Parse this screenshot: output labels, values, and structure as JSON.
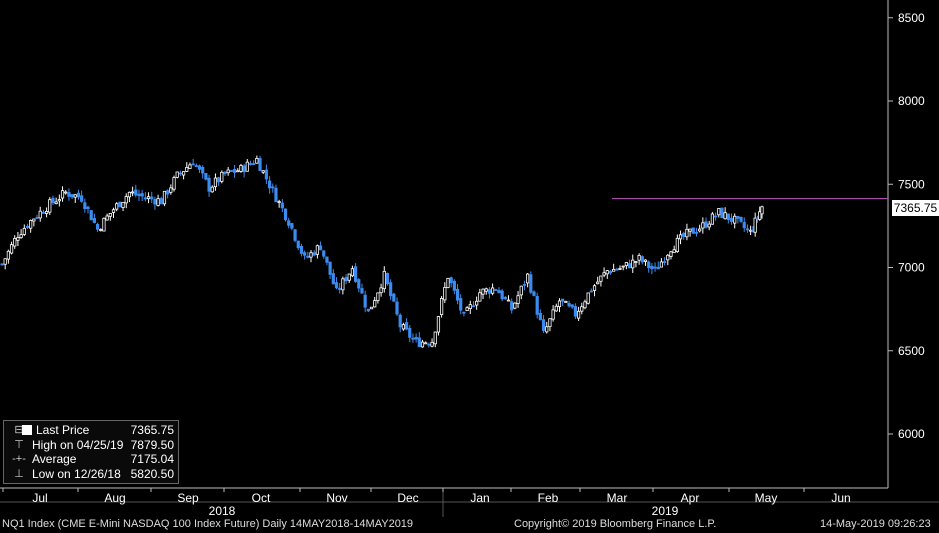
{
  "chart_data": {
    "type": "candlestick",
    "series_name": "NQ1 Index (CME E-Mini NASDAQ 100 Index Future)",
    "period": "Daily 14MAY2018-14MAY2019",
    "y_ticks": [
      6000,
      6500,
      7000,
      7500,
      8000,
      8500
    ],
    "ylim": [
      5700,
      8550
    ],
    "x_month_labels": [
      "Jul",
      "Aug",
      "Sep",
      "Oct",
      "Nov",
      "Dec",
      "Jan",
      "Feb",
      "Mar",
      "Apr",
      "May",
      "Jun"
    ],
    "year_labels": [
      "2018",
      "2019"
    ],
    "close_series": [
      {
        "date": "2018-06-14",
        "close": 7020
      },
      {
        "date": "2018-06-21",
        "close": 7200
      },
      {
        "date": "2018-06-28",
        "close": 7300
      },
      {
        "date": "2018-07-05",
        "close": 7380
      },
      {
        "date": "2018-07-12",
        "close": 7450
      },
      {
        "date": "2018-07-19",
        "close": 7420
      },
      {
        "date": "2018-07-26",
        "close": 7230
      },
      {
        "date": "2018-08-02",
        "close": 7350
      },
      {
        "date": "2018-08-09",
        "close": 7450
      },
      {
        "date": "2018-08-16",
        "close": 7420
      },
      {
        "date": "2018-08-23",
        "close": 7400
      },
      {
        "date": "2018-08-30",
        "close": 7550
      },
      {
        "date": "2018-09-06",
        "close": 7640
      },
      {
        "date": "2018-09-13",
        "close": 7480
      },
      {
        "date": "2018-09-20",
        "close": 7560
      },
      {
        "date": "2018-09-27",
        "close": 7590
      },
      {
        "date": "2018-10-04",
        "close": 7650
      },
      {
        "date": "2018-10-11",
        "close": 7460
      },
      {
        "date": "2018-10-18",
        "close": 7280
      },
      {
        "date": "2018-10-25",
        "close": 7050
      },
      {
        "date": "2018-11-01",
        "close": 7130
      },
      {
        "date": "2018-11-08",
        "close": 6850
      },
      {
        "date": "2018-11-15",
        "close": 7000
      },
      {
        "date": "2018-11-22",
        "close": 6730
      },
      {
        "date": "2018-11-29",
        "close": 6950
      },
      {
        "date": "2018-12-06",
        "close": 6650
      },
      {
        "date": "2018-12-13",
        "close": 6550
      },
      {
        "date": "2018-12-20",
        "close": 6560
      },
      {
        "date": "2018-12-27",
        "close": 6950
      },
      {
        "date": "2019-01-03",
        "close": 6700
      },
      {
        "date": "2019-01-10",
        "close": 6850
      },
      {
        "date": "2019-01-17",
        "close": 6880
      },
      {
        "date": "2019-01-24",
        "close": 6750
      },
      {
        "date": "2019-01-31",
        "close": 6950
      },
      {
        "date": "2019-02-07",
        "close": 6600
      },
      {
        "date": "2019-02-14",
        "close": 6800
      },
      {
        "date": "2019-02-21",
        "close": 6720
      },
      {
        "date": "2019-02-28",
        "close": 6870
      },
      {
        "date": "2019-03-07",
        "close": 6980
      },
      {
        "date": "2019-03-14",
        "close": 7000
      },
      {
        "date": "2019-03-21",
        "close": 7050
      },
      {
        "date": "2019-03-28",
        "close": 6980
      },
      {
        "date": "2019-04-04",
        "close": 7120
      },
      {
        "date": "2019-04-11",
        "close": 7200
      },
      {
        "date": "2019-04-18",
        "close": 7250
      },
      {
        "date": "2019-04-25",
        "close": 7330
      },
      {
        "date": "2019-05-02",
        "close": 7280
      },
      {
        "date": "2019-05-09",
        "close": 7210
      },
      {
        "date": "2019-05-14",
        "close": 7365.75
      }
    ],
    "last_price": 7365.75,
    "high": {
      "date": "04/25/19",
      "value": 7879.5
    },
    "average": 7175.04,
    "low": {
      "date": "12/26/18",
      "value": 5820.5
    },
    "candle_colors": {
      "up": "#ffffff",
      "down": "#3c8cf0"
    },
    "last_price_line_color": "#c05cc0",
    "grid": false,
    "legend_position": "bottom-left"
  },
  "legend": {
    "items": [
      {
        "label": "Last Price",
        "value": "7365.75"
      },
      {
        "label": "High on 04/25/19",
        "value": "7879.50"
      },
      {
        "label": "Average",
        "value": "7175.04"
      },
      {
        "label": "Low on 12/26/18",
        "value": "5820.50"
      }
    ]
  },
  "price_tag": "7365.75",
  "footer": {
    "left": "NQ1 Index (CME E-Mini NASDAQ 100 Index Future)  Daily 14MAY2018-14MAY2019",
    "center": "Copyright© 2019 Bloomberg Finance L.P.",
    "right": "14-May-2019 09:26:23"
  }
}
